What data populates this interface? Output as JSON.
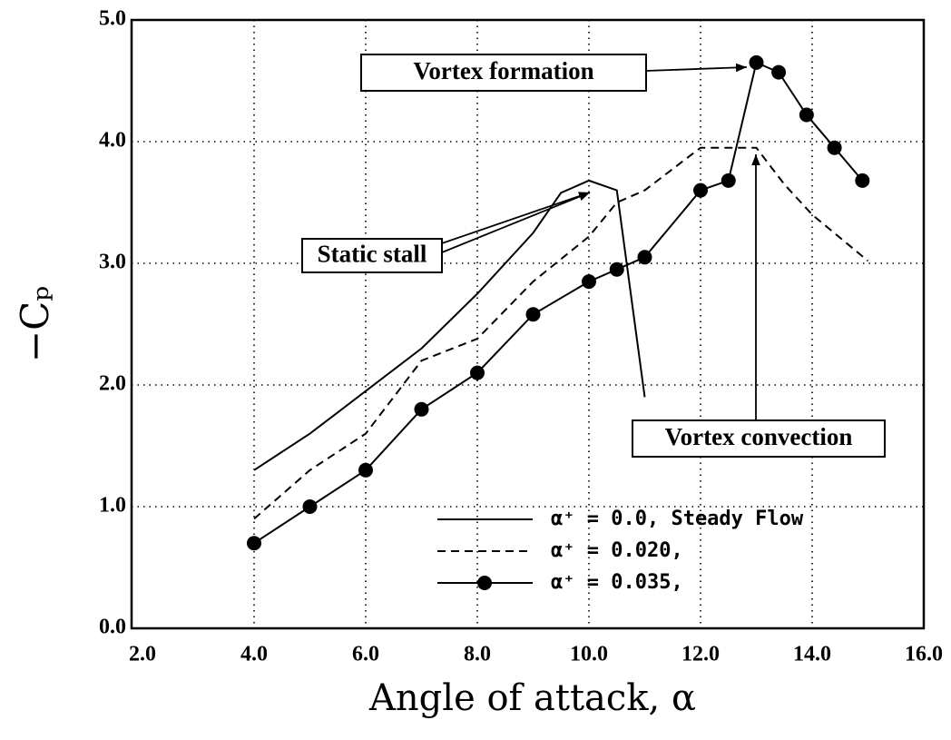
{
  "chart_data": {
    "type": "line",
    "xlabel": "Angle of attack, α",
    "ylabel": "−Cₚ",
    "xlim": [
      2,
      16
    ],
    "ylim": [
      0,
      5
    ],
    "xticks": [
      {
        "value": 2,
        "label": "2.0"
      },
      {
        "value": 4,
        "label": "4.0"
      },
      {
        "value": 6,
        "label": "6.0"
      },
      {
        "value": 8,
        "label": "8.0"
      },
      {
        "value": 10,
        "label": "10.0"
      },
      {
        "value": 12,
        "label": "12.0"
      },
      {
        "value": 14,
        "label": "14.0"
      },
      {
        "value": 16,
        "label": "16.0"
      }
    ],
    "yticks": [
      {
        "value": 0,
        "label": "0.0"
      },
      {
        "value": 1,
        "label": "1.0"
      },
      {
        "value": 2,
        "label": "2.0"
      },
      {
        "value": 3,
        "label": "3.0"
      },
      {
        "value": 4,
        "label": "4.0"
      },
      {
        "value": 5,
        "label": "5.0"
      }
    ],
    "grid": true,
    "legend": "lower right",
    "series": [
      {
        "name": "α⁺ = 0.0, Steady Flow",
        "color": "#000000",
        "style": "solid",
        "x": [
          4,
          5,
          6,
          7,
          8,
          9,
          9.5,
          10,
          10.5,
          11
        ],
        "values": [
          1.3,
          1.6,
          1.95,
          2.3,
          2.75,
          3.25,
          3.58,
          3.68,
          3.6,
          1.9
        ]
      },
      {
        "name": "α⁺ = 0.020,",
        "color": "#000000",
        "style": "dashed",
        "x": [
          4,
          5,
          6,
          7,
          8,
          9,
          10,
          10.5,
          11,
          12,
          12.5,
          13,
          13.5,
          14,
          15
        ],
        "values": [
          0.9,
          1.3,
          1.6,
          2.2,
          2.38,
          2.85,
          3.22,
          3.5,
          3.6,
          3.95,
          3.95,
          3.95,
          3.65,
          3.4,
          3.02
        ]
      },
      {
        "name": "α⁺ = 0.035,",
        "color": "#000000",
        "style": "solid",
        "marker": "circle",
        "x": [
          4,
          5,
          6,
          7,
          8,
          9,
          10,
          10.5,
          11,
          12,
          12.5,
          13,
          13.4,
          13.9,
          14.4,
          14.9
        ],
        "values": [
          0.7,
          1.0,
          1.3,
          1.8,
          2.1,
          2.58,
          2.85,
          2.95,
          3.05,
          3.6,
          3.68,
          4.65,
          4.57,
          4.22,
          3.95,
          3.68
        ]
      }
    ],
    "annotations": [
      "Static stall",
      "Vortex formation",
      "Vortex convection"
    ]
  }
}
